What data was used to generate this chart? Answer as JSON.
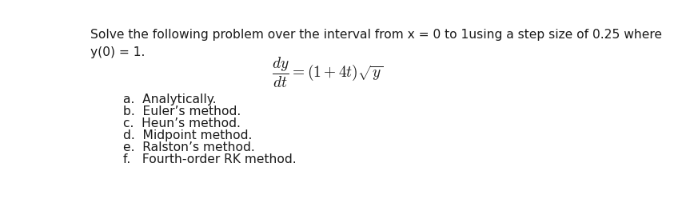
{
  "background_color": "#ffffff",
  "line1": "Solve the following problem over the interval from x = 0 to 1using a step size of 0.25 where",
  "line2": "y(0) = 1.",
  "equation": "$\\dfrac{dy}{dt} = (1 + 4t)\\sqrt{y}$",
  "items": [
    "a.  Analytically.",
    "b.  Euler’s method.",
    "c.  Heun’s method.",
    "d.  Midpoint method.",
    "e.  Ralston’s method.",
    "f.   Fourth-order RK method."
  ],
  "font_size_main": 11.2,
  "font_size_eq": 14,
  "font_family": "Arial Narrow",
  "text_color": "#1a1a1a"
}
